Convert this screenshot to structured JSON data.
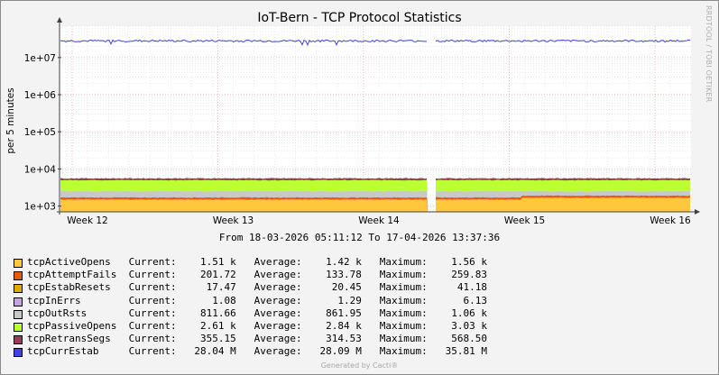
{
  "title": "IoT-Bern - TCP Protocol Statistics",
  "watermark": "RRDTOOL / TOBI OETIKER",
  "date_range": "From 18-03-2026 05:11:12 To 17-04-2026 13:37:36",
  "generated_by": "Generated by Cacti®",
  "colors": {
    "tcpActiveOpens": "#FFC73B",
    "tcpAttemptFails": "#EA5A0E",
    "tcpEstabResets": "#D8AC00",
    "tcpInErrs": "#C4A5E0",
    "tcpOutRsts": "#C8C8C8",
    "tcpPassiveOpens": "#BBFF33",
    "tcpRetransSegs": "#8F3F5A",
    "tcpCurrEstab": "#4040E8"
  },
  "chart_data": {
    "type": "area",
    "ylabel": "per 5 minutes",
    "y_scale": "log",
    "ylim": [
      700,
      70000000
    ],
    "y_ticks": [
      "1e+03",
      "1e+04",
      "1e+05",
      "1e+06",
      "1e+07"
    ],
    "x_ticks": [
      "Week 12",
      "Week 13",
      "Week 14",
      "Week 15",
      "Week 16"
    ],
    "x_range": [
      "18-03-2026 05:11:12",
      "17-04-2026 13:37:36"
    ],
    "grid": true,
    "legend_position": "bottom",
    "series": [
      {
        "name": "tcpActiveOpens",
        "current": "1.51 k",
        "average": "1.42 k",
        "maximum": "1.56 k"
      },
      {
        "name": "tcpAttemptFails",
        "current": "201.72",
        "average": "133.78",
        "maximum": "259.83"
      },
      {
        "name": "tcpEstabResets",
        "current": "17.47",
        "average": "20.45",
        "maximum": "41.18"
      },
      {
        "name": "tcpInErrs",
        "current": "1.08",
        "average": "1.29",
        "maximum": "6.13"
      },
      {
        "name": "tcpOutRsts",
        "current": "811.66",
        "average": "861.95",
        "maximum": "1.06 k"
      },
      {
        "name": "tcpPassiveOpens",
        "current": "2.61 k",
        "average": "2.84 k",
        "maximum": "3.03 k"
      },
      {
        "name": "tcpRetransSegs",
        "current": "355.15",
        "average": "314.53",
        "maximum": "568.50"
      },
      {
        "name": "tcpCurrEstab",
        "current": "28.04 M",
        "average": "28.09 M",
        "maximum": "35.81 M"
      }
    ],
    "stack_totals": {
      "active": 1500,
      "active_attempt": 1700,
      "through_outrsts": 2500,
      "through_passive": 5000,
      "through_retrans": 5400,
      "curr_estab": 28000000
    }
  },
  "legend_labels": {
    "current": "Current:",
    "average": "Average:",
    "maximum": "Maximum:"
  }
}
